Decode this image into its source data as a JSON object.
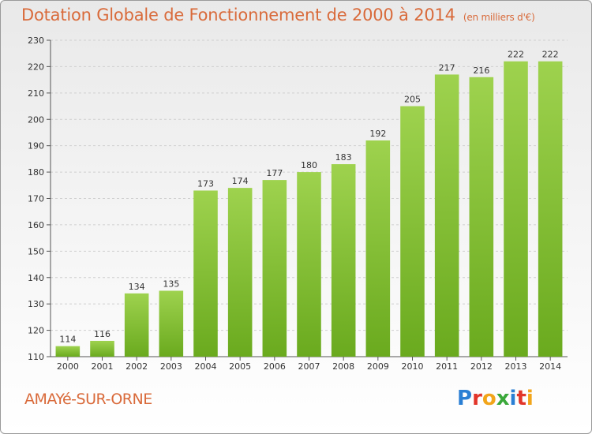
{
  "header": {
    "title": "Dotation Globale de Fonctionnement de 2000 à 2014",
    "subtitle": "(en milliers d'€)"
  },
  "footer": {
    "city": "AMAYé-SUR-ORNE",
    "logo": {
      "text": "Proxiti",
      "letters": [
        "P",
        "r",
        "o",
        "x",
        "i",
        "t",
        "i"
      ],
      "colors": [
        "#2a7fd4",
        "#e2352a",
        "#f2a51a",
        "#3aa83a",
        "#2a7fd4",
        "#e2352a",
        "#f2a51a"
      ]
    }
  },
  "chart_data": {
    "type": "bar",
    "categories": [
      "2000",
      "2001",
      "2002",
      "2003",
      "2004",
      "2005",
      "2006",
      "2007",
      "2008",
      "2009",
      "2010",
      "2011",
      "2012",
      "2013",
      "2014"
    ],
    "values": [
      114,
      116,
      134,
      135,
      173,
      174,
      177,
      180,
      183,
      192,
      205,
      217,
      216,
      222,
      222
    ],
    "title": "Dotation Globale de Fonctionnement de 2000 à 2014",
    "subtitle": "(en milliers d'€)",
    "xlabel": "",
    "ylabel": "",
    "ylim": [
      110,
      230
    ],
    "yticks": [
      110,
      120,
      130,
      140,
      150,
      160,
      170,
      180,
      190,
      200,
      210,
      220,
      230
    ],
    "grid": true,
    "bar_color_top": "#9ed24e",
    "bar_color_bottom": "#6aaa1e"
  }
}
